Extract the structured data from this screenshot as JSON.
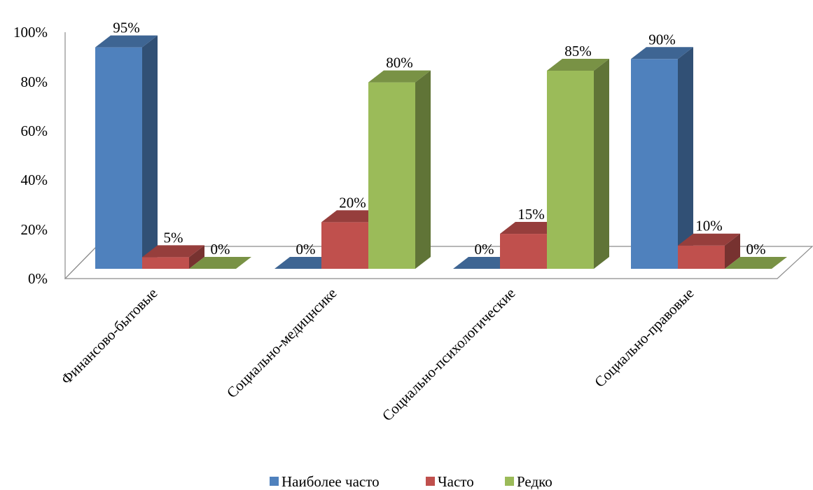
{
  "chart_data": {
    "type": "bar",
    "categories": [
      "Финансово-бытовые",
      "Социально-медицнсике",
      "Социально-психологические",
      "Социально-правовые"
    ],
    "series": [
      {
        "name": "Наиболее часто",
        "values": [
          95,
          0,
          0,
          90
        ],
        "labels": [
          "95%",
          "0%",
          "0%",
          "90%"
        ],
        "color": "#4F81BD"
      },
      {
        "name": "Часто",
        "values": [
          5,
          20,
          15,
          10
        ],
        "labels": [
          "5%",
          "20%",
          "15%",
          "10%"
        ],
        "color": "#C0504D"
      },
      {
        "name": "Редко",
        "values": [
          0,
          80,
          85,
          0
        ],
        "labels": [
          "0%",
          "80%",
          "85%",
          "0%"
        ],
        "color": "#9BBB59"
      }
    ],
    "y_ticks": [
      "0%",
      "20%",
      "40%",
      "60%",
      "80%",
      "100%"
    ],
    "ylim": [
      0,
      100
    ],
    "grid": false,
    "legend": "bottom",
    "style": "3d-clustered-column"
  }
}
